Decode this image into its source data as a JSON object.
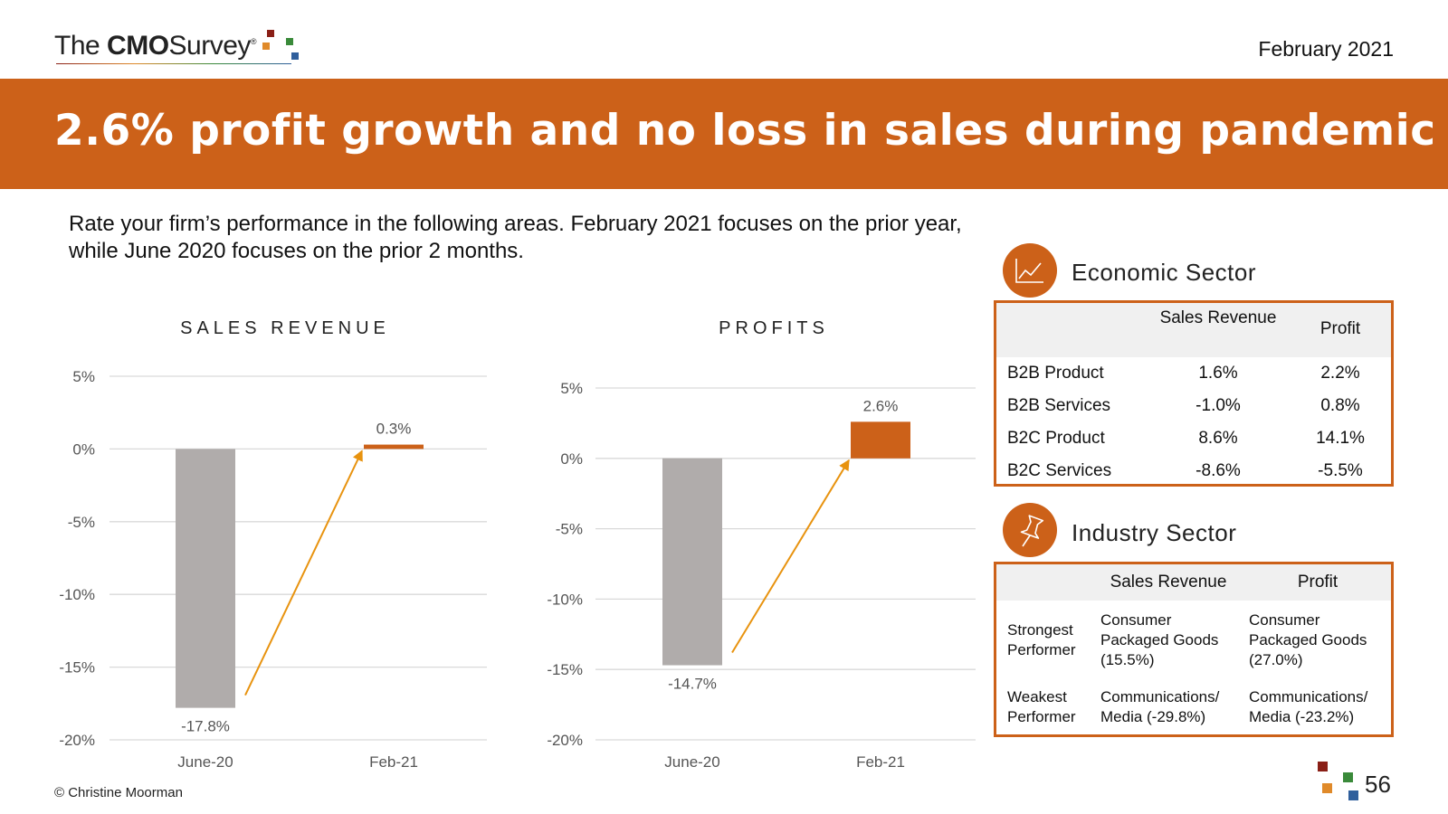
{
  "header": {
    "logo_the": "The",
    "logo_cmo": "CMO",
    "logo_survey": "Survey",
    "logo_reg": "®",
    "date": "February 2021"
  },
  "banner": {
    "title": "2.6% profit growth and no loss in sales during pandemic"
  },
  "question": "Rate your firm’s performance in the following areas. February 2021 focuses on the prior year, while June 2020 focuses on the prior 2 months.",
  "chart_data": [
    {
      "type": "bar",
      "title": "SALES REVENUE",
      "categories": [
        "June-20",
        "Feb-21"
      ],
      "values": [
        -17.8,
        0.3
      ],
      "data_labels": [
        "-17.8%",
        "0.3%"
      ],
      "yticks": [
        5,
        0,
        -5,
        -10,
        -15,
        -20
      ],
      "ytick_labels": [
        "5%",
        "0%",
        "-5%",
        "-10%",
        "-15%",
        "-20%"
      ],
      "ylim": [
        -20,
        5
      ],
      "grid": true,
      "colors": [
        "#b0acab",
        "#cc6119"
      ],
      "arrow_color": "#e8930f"
    },
    {
      "type": "bar",
      "title": "PROFITS",
      "categories": [
        "June-20",
        "Feb-21"
      ],
      "values": [
        -14.7,
        2.6
      ],
      "data_labels": [
        "-14.7%",
        "2.6%"
      ],
      "yticks": [
        5,
        0,
        -5,
        -10,
        -15,
        -20
      ],
      "ytick_labels": [
        "5%",
        "0%",
        "-5%",
        "-10%",
        "-15%",
        "-20%"
      ],
      "ylim": [
        -20,
        5
      ],
      "grid": true,
      "colors": [
        "#b0acab",
        "#cc6119"
      ],
      "arrow_color": "#e8930f"
    }
  ],
  "economic": {
    "title": "Economic Sector",
    "icon": "line-chart-icon",
    "col_sales": "Sales Revenue",
    "col_profit": "Profit",
    "rows": [
      {
        "label": "B2B Product",
        "sales": "1.6%",
        "profit": "2.2%"
      },
      {
        "label": "B2B Services",
        "sales": "-1.0%",
        "profit": "0.8%"
      },
      {
        "label": "B2C Product",
        "sales": "8.6%",
        "profit": "14.1%"
      },
      {
        "label": "B2C Services",
        "sales": "-8.6%",
        "profit": "-5.5%"
      }
    ]
  },
  "industry": {
    "title": "Industry Sector",
    "icon": "pushpin-icon",
    "col_sales": "Sales Revenue",
    "col_profit": "Profit",
    "strongest": {
      "label": "Strongest Performer",
      "sales": "Consumer Packaged Goods (15.5%)",
      "profit": "Consumer Packaged Goods (27.0%)"
    },
    "weakest": {
      "label": "Weakest Performer",
      "sales": "Communications/ Media (-29.8%)",
      "profit": "Communications/ Media (-23.2%)"
    }
  },
  "footer": {
    "copyright": "© Christine Moorman",
    "page": "56"
  },
  "colors": {
    "accent": "#cc6119",
    "bar_gray": "#b0acab",
    "arrow": "#e8930f"
  }
}
